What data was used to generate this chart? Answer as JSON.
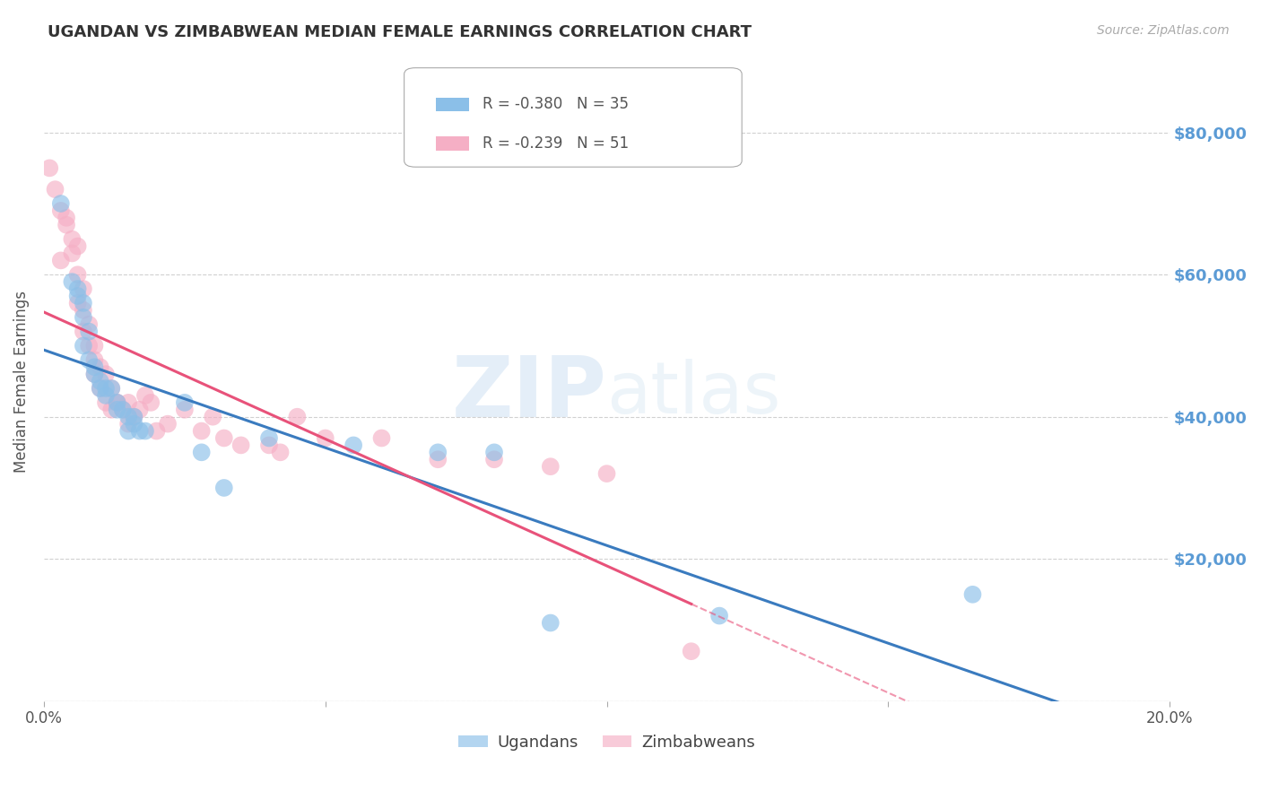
{
  "title": "UGANDAN VS ZIMBABWEAN MEDIAN FEMALE EARNINGS CORRELATION CHART",
  "source": "Source: ZipAtlas.com",
  "ylabel": "Median Female Earnings",
  "xlim": [
    0.0,
    0.2
  ],
  "ylim": [
    0,
    90000
  ],
  "yticks": [
    0,
    20000,
    40000,
    60000,
    80000
  ],
  "ytick_labels_right": [
    "",
    "$20,000",
    "$40,000",
    "$60,000",
    "$80,000"
  ],
  "xtick_labels": [
    "0.0%",
    "",
    "",
    "",
    "20.0%"
  ],
  "xticks": [
    0.0,
    0.05,
    0.1,
    0.15,
    0.2
  ],
  "background_color": "#ffffff",
  "grid_color": "#cccccc",
  "ugandan_color": "#8bbfe8",
  "zimbabwean_color": "#f5afc5",
  "ugandan_line_color": "#3a7bbf",
  "zimbabwean_line_color": "#e8527a",
  "watermark_zip": "ZIP",
  "watermark_atlas": "atlas",
  "legend_label_ugandan": "Ugandans",
  "legend_label_zimbabwean": "Zimbabweans",
  "ugandan_x": [
    0.003,
    0.005,
    0.006,
    0.006,
    0.007,
    0.007,
    0.007,
    0.008,
    0.008,
    0.009,
    0.009,
    0.01,
    0.01,
    0.011,
    0.011,
    0.012,
    0.013,
    0.013,
    0.014,
    0.015,
    0.015,
    0.016,
    0.016,
    0.017,
    0.018,
    0.025,
    0.028,
    0.032,
    0.04,
    0.055,
    0.07,
    0.08,
    0.09,
    0.12,
    0.165
  ],
  "ugandan_y": [
    70000,
    59000,
    58000,
    57000,
    56000,
    54000,
    50000,
    52000,
    48000,
    47000,
    46000,
    45000,
    44000,
    43000,
    44000,
    44000,
    42000,
    41000,
    41000,
    40000,
    38000,
    39000,
    40000,
    38000,
    38000,
    42000,
    35000,
    30000,
    37000,
    36000,
    35000,
    35000,
    11000,
    12000,
    15000
  ],
  "zimbabwean_x": [
    0.001,
    0.002,
    0.003,
    0.003,
    0.004,
    0.004,
    0.005,
    0.005,
    0.006,
    0.006,
    0.006,
    0.007,
    0.007,
    0.007,
    0.008,
    0.008,
    0.009,
    0.009,
    0.009,
    0.01,
    0.01,
    0.011,
    0.011,
    0.012,
    0.012,
    0.013,
    0.013,
    0.014,
    0.015,
    0.015,
    0.016,
    0.017,
    0.018,
    0.019,
    0.02,
    0.022,
    0.025,
    0.028,
    0.03,
    0.032,
    0.035,
    0.04,
    0.042,
    0.045,
    0.05,
    0.06,
    0.07,
    0.08,
    0.09,
    0.1,
    0.115
  ],
  "zimbabwean_y": [
    75000,
    72000,
    69000,
    62000,
    68000,
    67000,
    65000,
    63000,
    64000,
    60000,
    56000,
    58000,
    55000,
    52000,
    53000,
    50000,
    48000,
    50000,
    46000,
    47000,
    44000,
    46000,
    42000,
    44000,
    41000,
    42000,
    42000,
    41000,
    42000,
    39000,
    40000,
    41000,
    43000,
    42000,
    38000,
    39000,
    41000,
    38000,
    40000,
    37000,
    36000,
    36000,
    35000,
    40000,
    37000,
    37000,
    34000,
    34000,
    33000,
    32000,
    7000
  ]
}
